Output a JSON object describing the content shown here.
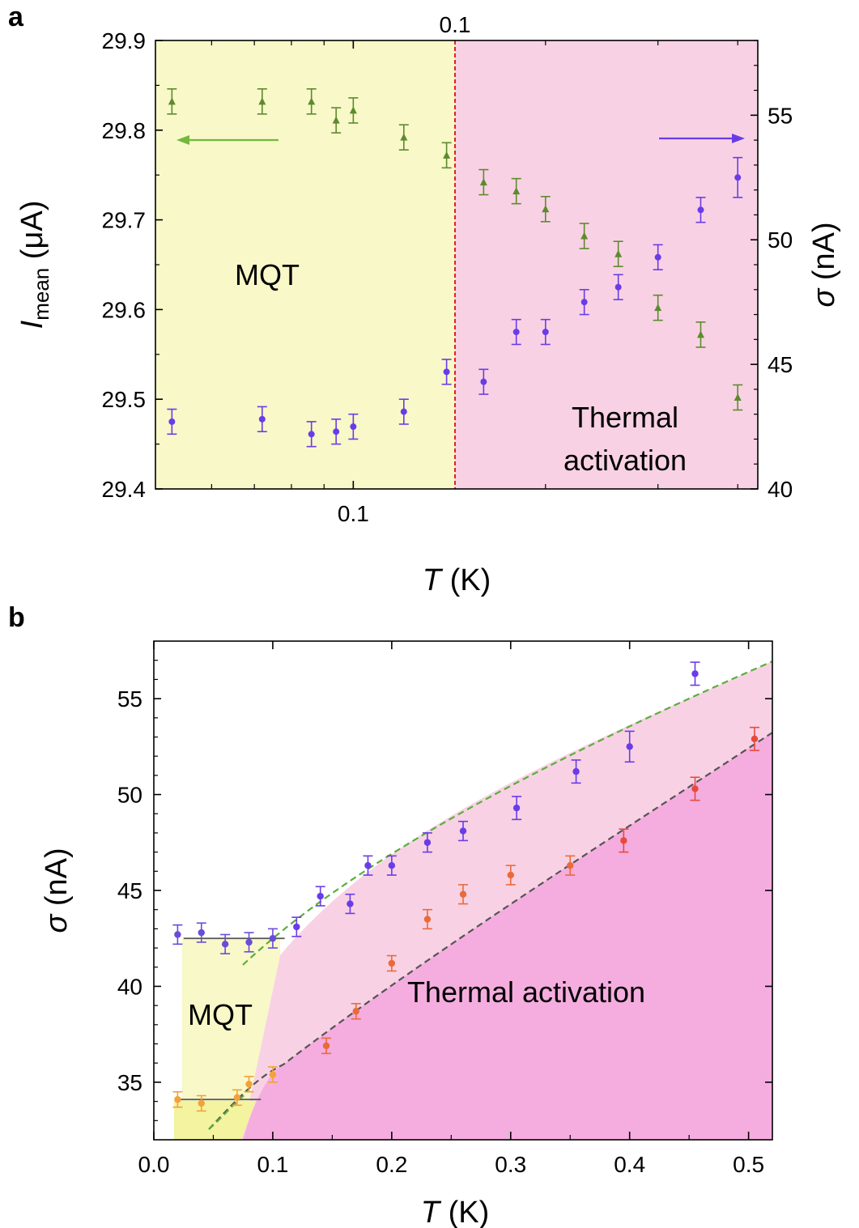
{
  "chart_data": [
    {
      "panel_label": "a",
      "type": "scatter",
      "x_scale": "log",
      "xlabel_main": "T",
      "xlabel_unit": "(K)",
      "xlim": [
        0.049,
        0.43
      ],
      "x_ticks": [
        0.1
      ],
      "x_tick_labels": [
        "0.1"
      ],
      "top_x_tick_label": "0.1",
      "ylabel_main": "I",
      "ylabel_sub": "mean",
      "ylabel_unit": "(μA)",
      "ylim": [
        29.4,
        29.9
      ],
      "y_ticks": [
        29.4,
        29.5,
        29.6,
        29.7,
        29.8,
        29.9
      ],
      "y2label_main": "σ",
      "y2label_unit": "(nA)",
      "y2lim": [
        40,
        58
      ],
      "y2_ticks": [
        40,
        45,
        50,
        55
      ],
      "divider_x": 0.1,
      "regions": [
        {
          "label": "MQT",
          "from": 0.049,
          "to": 0.1,
          "color": "#f8f8c8"
        },
        {
          "label_lines": [
            "Thermal",
            "activation"
          ],
          "from": 0.1,
          "to": 0.43,
          "color": "#f8d2e4"
        }
      ],
      "arrows": [
        {
          "axis": "left",
          "color": "#72b83c"
        },
        {
          "axis": "right",
          "color": "#6a3ce8"
        }
      ],
      "series": [
        {
          "axis": "left",
          "marker": "triangle",
          "color": "#5e8a2e",
          "x": [
            0.052,
            0.072,
            0.086,
            0.094,
            0.1,
            0.12,
            0.14,
            0.16,
            0.18,
            0.2,
            0.23,
            0.26,
            0.3,
            0.35,
            0.4
          ],
          "y": [
            29.832,
            29.832,
            29.832,
            29.811,
            29.822,
            29.792,
            29.772,
            29.742,
            29.732,
            29.712,
            29.682,
            29.662,
            29.602,
            29.572,
            29.502
          ],
          "err": [
            0.014,
            0.014,
            0.014,
            0.014,
            0.014,
            0.014,
            0.014,
            0.014,
            0.014,
            0.014,
            0.014,
            0.014,
            0.014,
            0.014,
            0.014
          ]
        },
        {
          "axis": "right",
          "marker": "circle",
          "color": "#6a3ce8",
          "x": [
            0.052,
            0.072,
            0.086,
            0.094,
            0.1,
            0.12,
            0.14,
            0.16,
            0.18,
            0.2,
            0.23,
            0.26,
            0.3,
            0.35,
            0.4
          ],
          "y": [
            42.7,
            42.8,
            42.2,
            42.3,
            42.5,
            43.1,
            44.7,
            44.3,
            46.3,
            46.3,
            47.5,
            48.1,
            49.3,
            51.2,
            52.5
          ],
          "err": [
            0.5,
            0.5,
            0.5,
            0.5,
            0.5,
            0.5,
            0.5,
            0.5,
            0.5,
            0.5,
            0.5,
            0.5,
            0.5,
            0.5,
            0.8
          ]
        }
      ]
    },
    {
      "panel_label": "b",
      "type": "scatter",
      "xlabel_main": "T",
      "xlabel_unit": "(K)",
      "xlim": [
        0.0,
        0.52
      ],
      "x_ticks": [
        0.0,
        0.1,
        0.2,
        0.3,
        0.4,
        0.5
      ],
      "x_tick_labels": [
        "0.0",
        "0.1",
        "0.2",
        "0.3",
        "0.4",
        "0.5"
      ],
      "ylabel_main": "σ",
      "ylabel_unit": "(nA)",
      "ylim": [
        32,
        58
      ],
      "y_ticks": [
        35,
        40,
        45,
        50,
        55
      ],
      "regions": [
        {
          "label": "MQT",
          "color": "#f8f8c8"
        },
        {
          "label": "Thermal activation",
          "color": "#f8d2e4"
        }
      ],
      "plateaus": [
        {
          "y": 42.5,
          "x": [
            0.025,
            0.11
          ]
        },
        {
          "y": 34.1,
          "x": [
            0.02,
            0.09
          ]
        }
      ],
      "series": [
        {
          "marker": "circle",
          "color": "#6a3ce8",
          "x": [
            0.02,
            0.04,
            0.06,
            0.08,
            0.1,
            0.12,
            0.14,
            0.165,
            0.18,
            0.2,
            0.23,
            0.26,
            0.305,
            0.355,
            0.4,
            0.455
          ],
          "y": [
            42.7,
            42.8,
            42.2,
            42.3,
            42.5,
            43.1,
            44.7,
            44.3,
            46.3,
            46.3,
            47.5,
            48.1,
            49.3,
            51.2,
            52.5,
            56.3
          ],
          "err": [
            0.5,
            0.5,
            0.5,
            0.5,
            0.5,
            0.5,
            0.5,
            0.5,
            0.5,
            0.5,
            0.5,
            0.5,
            0.6,
            0.6,
            0.8,
            0.6
          ]
        },
        {
          "marker": "circle",
          "color": "#e64a3c",
          "x": [
            0.02,
            0.04,
            0.07,
            0.08,
            0.1,
            0.145,
            0.17,
            0.2,
            0.23,
            0.26,
            0.3,
            0.35,
            0.395,
            0.455,
            0.505
          ],
          "y": [
            34.1,
            33.9,
            34.2,
            34.9,
            35.4,
            36.9,
            38.7,
            41.2,
            43.5,
            44.8,
            45.8,
            46.3,
            47.6,
            50.3,
            52.9
          ],
          "err": [
            0.4,
            0.4,
            0.4,
            0.4,
            0.4,
            0.4,
            0.4,
            0.4,
            0.5,
            0.5,
            0.5,
            0.5,
            0.6,
            0.6,
            0.6
          ]
        }
      ]
    }
  ]
}
